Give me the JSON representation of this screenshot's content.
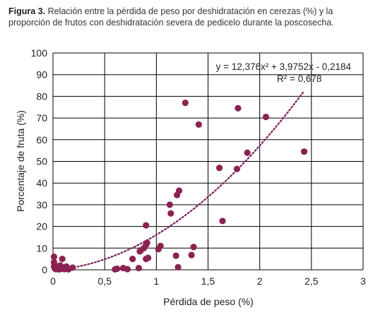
{
  "caption": {
    "label": "Figura 3.",
    "text": "Relación entre la pérdida de peso por deshidratación en cerezas (%) y la proporción de frutos con deshidratación severa de pedicelo durante la poscosecha."
  },
  "colors": {
    "points": "#8b2352",
    "trend": "#7a1f5c",
    "grid": "#000000"
  },
  "chart_data": {
    "type": "scatter",
    "title": "",
    "xlabel": "Pérdida de peso (%)",
    "ylabel": "Porcentaje de fruta (%)",
    "xlim": [
      0,
      3
    ],
    "ylim": [
      0,
      100
    ],
    "x_ticks": [
      0,
      0.5,
      1,
      1.5,
      2,
      2.5,
      3
    ],
    "x_tick_labels": [
      "0",
      "0,5",
      "1",
      "1,5",
      "2",
      "2,5",
      "3"
    ],
    "y_ticks": [
      0,
      10,
      20,
      30,
      40,
      50,
      60,
      70,
      80,
      90,
      100
    ],
    "y_tick_labels": [
      "0",
      "10",
      "20",
      "30",
      "40",
      "50",
      "60",
      "70",
      "80",
      "90",
      "100"
    ],
    "grid": true,
    "series": [
      {
        "values": [
          [
            0.01,
            6
          ],
          [
            0.01,
            3.5
          ],
          [
            0.01,
            1.5
          ],
          [
            0.02,
            0.5
          ],
          [
            0.03,
            0.3
          ],
          [
            0.04,
            1.5
          ],
          [
            0.05,
            0.8
          ],
          [
            0.06,
            0.2
          ],
          [
            0.07,
            2
          ],
          [
            0.08,
            0.5
          ],
          [
            0.09,
            5
          ],
          [
            0.1,
            1
          ],
          [
            0.11,
            0.3
          ],
          [
            0.12,
            0.5
          ],
          [
            0.13,
            1.5
          ],
          [
            0.14,
            0.5
          ],
          [
            0.15,
            0.2
          ],
          [
            0.19,
            1
          ],
          [
            0.6,
            0.2
          ],
          [
            0.62,
            0.5
          ],
          [
            0.68,
            0.8
          ],
          [
            0.72,
            0.3
          ],
          [
            0.77,
            5
          ],
          [
            0.83,
            0.8
          ],
          [
            0.84,
            8.5
          ],
          [
            0.85,
            9
          ],
          [
            0.88,
            10
          ],
          [
            0.9,
            20.5
          ],
          [
            0.9,
            11.5
          ],
          [
            0.9,
            5
          ],
          [
            0.91,
            12.5
          ],
          [
            0.92,
            5.5
          ],
          [
            1.02,
            9.5
          ],
          [
            1.04,
            11
          ],
          [
            1.13,
            30
          ],
          [
            1.14,
            26
          ],
          [
            1.19,
            6.5
          ],
          [
            1.2,
            34.5
          ],
          [
            1.21,
            1.2
          ],
          [
            1.22,
            36.5
          ],
          [
            1.28,
            77
          ],
          [
            1.34,
            6.8
          ],
          [
            1.36,
            10.5
          ],
          [
            1.41,
            67
          ],
          [
            1.61,
            47
          ],
          [
            1.64,
            22.5
          ],
          [
            1.78,
            46.5
          ],
          [
            1.79,
            74.5
          ],
          [
            1.88,
            54
          ],
          [
            2.06,
            70.5
          ],
          [
            2.43,
            54.5
          ]
        ]
      }
    ],
    "trendline": {
      "type": "polynomial",
      "equation": "y = 12,376x² + 3,9752x - 0,2184",
      "r2": "R² = 0,678",
      "coefficients": [
        12.376,
        3.9752,
        -0.2184
      ],
      "x_range": [
        0,
        2.43
      ]
    }
  }
}
